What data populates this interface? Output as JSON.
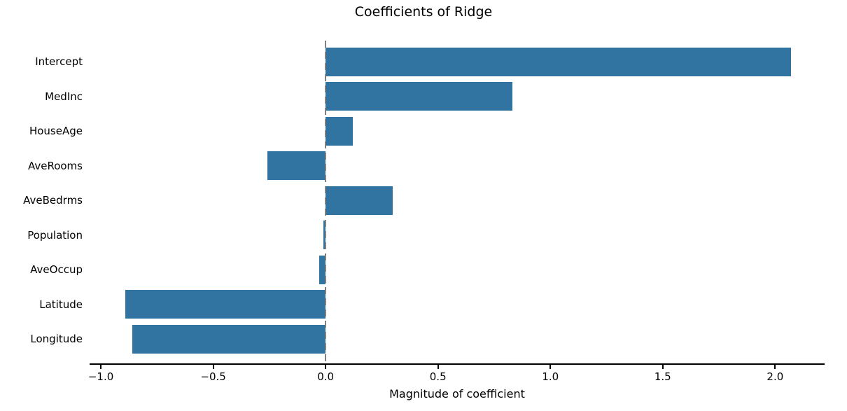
{
  "chart_data": {
    "type": "bar",
    "orientation": "horizontal",
    "title": "Coefficients of Ridge",
    "xlabel": "Magnitude of coefficient",
    "ylabel": "",
    "categories": [
      "Intercept",
      "MedInc",
      "HouseAge",
      "AveRooms",
      "AveBedrms",
      "Population",
      "AveOccup",
      "Latitude",
      "Longitude"
    ],
    "values": [
      2.07,
      0.83,
      0.12,
      -0.26,
      0.3,
      -0.01,
      -0.03,
      -0.89,
      -0.86
    ],
    "xlim": [
      -1.05,
      2.22
    ],
    "xticks": [
      -1.0,
      -0.5,
      0.0,
      0.5,
      1.0,
      1.5,
      2.0
    ],
    "xtick_labels": [
      "−1.0",
      "−0.5",
      "0.0",
      "0.5",
      "1.0",
      "1.5",
      "2.0"
    ],
    "bar_color": "#3274a1",
    "zero_line": {
      "x": 0,
      "style": "dashed",
      "color": "#808080"
    },
    "text_color": "#000000",
    "grid": false,
    "legend": null
  }
}
